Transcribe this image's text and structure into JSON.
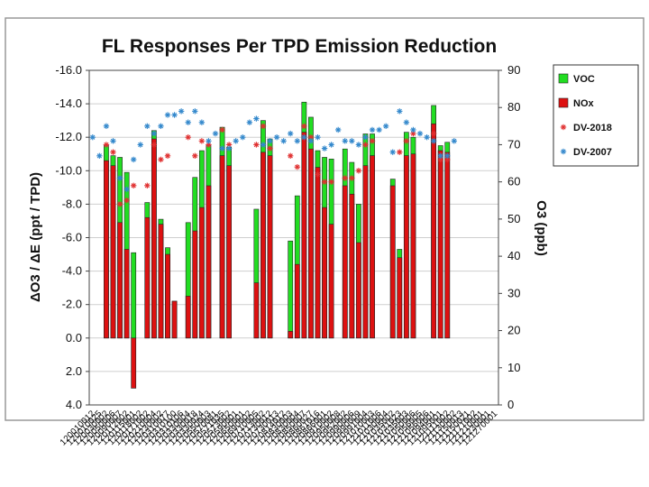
{
  "colors": {
    "voc": "#22dd22",
    "nox": "#dd1111",
    "dv2018": "#e03030",
    "dv2007": "#3388cc",
    "bar_edge": "#222222",
    "frame": "#999999",
    "grid": "#cfcfcf"
  },
  "chart_data": {
    "type": "bar",
    "title": "FL Responses Per TPD Emission Reduction",
    "ylabel_left": "ΔO3 / ΔE (ppt / TPD)",
    "ylabel_right": "O3 (ppb)",
    "y_left_range": [
      4.0,
      -16.0
    ],
    "y_left_ticks": [
      "-16.0",
      "-14.0",
      "-12.0",
      "-10.0",
      "-8.0",
      "-6.0",
      "-4.0",
      "-2.0",
      "0.0",
      "2.0",
      "4.0"
    ],
    "y_left_values": [
      -16,
      -14,
      -12,
      -10,
      -8,
      -6,
      -4,
      -2,
      0,
      2,
      4
    ],
    "y_right_range": [
      0,
      90
    ],
    "y_right_ticks": [
      "0",
      "10",
      "20",
      "30",
      "40",
      "50",
      "60",
      "70",
      "80",
      "90"
    ],
    "y_right_values": [
      0,
      10,
      20,
      30,
      40,
      50,
      60,
      70,
      80,
      90
    ],
    "legend": [
      {
        "key": "voc",
        "label": "VOC",
        "kind": "box"
      },
      {
        "key": "nox",
        "label": "NOx",
        "kind": "box"
      },
      {
        "key": "dv2018",
        "label": "DV-2018",
        "kind": "star"
      },
      {
        "key": "dv2007",
        "label": "DV-2007",
        "kind": "star"
      }
    ],
    "sites": [
      "120010012",
      "120010025",
      "120030002",
      "120050006",
      "120090007",
      "120112002",
      "120115001",
      "120118002",
      "120171002",
      "120210004",
      "120230002",
      "120310077",
      "120310100",
      "120310106",
      "120330004",
      "120330018",
      "120330024",
      "120550003",
      "120570081",
      "120571035",
      "120573002",
      "120590001",
      "120650001",
      "120690002",
      "120710005",
      "120713002",
      "120730012",
      "120730013",
      "120814012",
      "120830003",
      "120830004",
      "120850007",
      "120860027",
      "120861016",
      "120866001",
      "120910002",
      "120950008",
      "120952002",
      "120990006",
      "120990009",
      "120991004",
      "121010003",
      "121011006",
      "121030004",
      "121035002",
      "121031023",
      "121035003",
      "121050006",
      "121056005",
      "121056006",
      "121094001",
      "121095001",
      "121111002",
      "121130002",
      "121150013",
      "121150021",
      "121171002",
      "121210001",
      "121230001",
      "121270001"
    ],
    "nox": [
      null,
      null,
      -10.6,
      -10.3,
      -6.9,
      -5.3,
      3.0,
      null,
      -7.2,
      -11.9,
      -6.8,
      -5.0,
      -2.2,
      null,
      -2.5,
      -6.4,
      -7.8,
      -9.1,
      null,
      -10.9,
      -10.3,
      null,
      null,
      null,
      -3.3,
      -11.1,
      -10.9,
      null,
      null,
      -0.4,
      -4.4,
      -12.3,
      -11.3,
      -10.2,
      -7.8,
      -6.8,
      null,
      -9.1,
      -8.6,
      -5.7,
      -10.3,
      -10.9,
      null,
      null,
      -9.1,
      -4.8,
      -10.9,
      -11.0,
      null,
      null,
      -12.8,
      -11.2,
      -11.1,
      null,
      null,
      null,
      null,
      null,
      null,
      null
    ],
    "voc": [
      null,
      null,
      -11.5,
      -10.9,
      -10.8,
      -9.9,
      -5.1,
      null,
      -8.1,
      -12.4,
      -7.1,
      -5.4,
      -2.2,
      null,
      -6.9,
      -9.6,
      -11.2,
      -11.5,
      null,
      -12.6,
      -11.4,
      null,
      null,
      null,
      -7.7,
      -13.0,
      -11.9,
      null,
      null,
      -5.8,
      -8.5,
      -14.1,
      -13.2,
      -11.2,
      -10.8,
      -10.7,
      null,
      -11.3,
      -10.5,
      -8.0,
      -12.2,
      -12.2,
      null,
      null,
      -9.5,
      -5.3,
      -12.3,
      -12.0,
      null,
      null,
      -13.9,
      -11.5,
      -11.7,
      null,
      null,
      null,
      null,
      null,
      null,
      null
    ],
    "dv2018": [
      null,
      null,
      70,
      68,
      54,
      55,
      59,
      null,
      59,
      70,
      66,
      67,
      null,
      null,
      72,
      67,
      71,
      70,
      null,
      74,
      70,
      null,
      null,
      null,
      70,
      75,
      69,
      null,
      null,
      67,
      64,
      75,
      72,
      62,
      60,
      60,
      null,
      61,
      61,
      63,
      70,
      71,
      null,
      null,
      null,
      68,
      71,
      73,
      null,
      null,
      73,
      66,
      66,
      null,
      null,
      null,
      null,
      null,
      null,
      null
    ],
    "dv2007": [
      72,
      67,
      75,
      71,
      61,
      58,
      66,
      70,
      75,
      73,
      75,
      78,
      78,
      79,
      76,
      79,
      76,
      71,
      73,
      69,
      69,
      71,
      72,
      76,
      77,
      70,
      71,
      72,
      71,
      73,
      71,
      72,
      71,
      72,
      69,
      70,
      74,
      71,
      71,
      70,
      72,
      74,
      74,
      75,
      68,
      79,
      76,
      74,
      73,
      72,
      71,
      67,
      67,
      71,
      null,
      null,
      null,
      null,
      null,
      null
    ]
  }
}
